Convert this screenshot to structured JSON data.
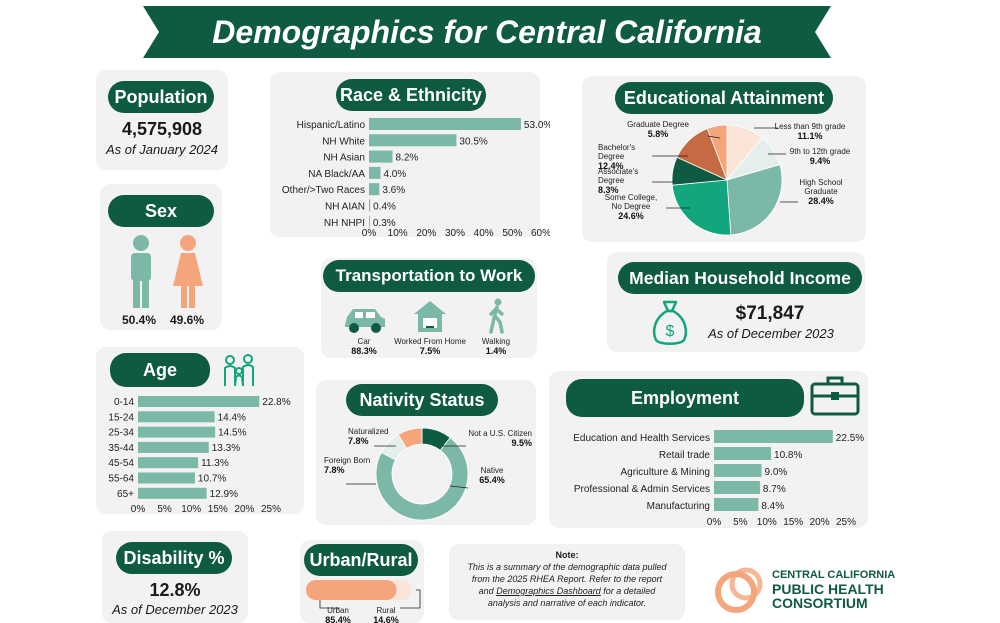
{
  "title": "Demographics for Central California",
  "colors": {
    "dark_green": "#0f5a43",
    "teal": "#7bb8a8",
    "light": "#dceee8",
    "orange": "#f4a57c",
    "card": "#f2f2f2"
  },
  "population": {
    "heading": "Population",
    "value": "4,575,908",
    "asof": "As of January 2024"
  },
  "sex": {
    "heading": "Sex",
    "male_pct": "50.4%",
    "female_pct": "49.6%",
    "male_icon": "male-person-icon",
    "female_icon": "female-person-icon"
  },
  "race": {
    "heading": "Race & Ethnicity"
  },
  "education": {
    "heading": "Educational Attainment",
    "labels": [
      {
        "name": "Graduate Degree",
        "pct": "5.8%"
      },
      {
        "name": "Bachelor's Degree",
        "pct": "12.4%"
      },
      {
        "name": "Associate's Degree",
        "pct": "8.3%"
      },
      {
        "name1": "Some College,",
        "name2": "No Degree",
        "pct": "24.6%"
      },
      {
        "name": "Less than 9th grade",
        "pct": "11.1%"
      },
      {
        "name": "9th to 12th grade",
        "pct": "9.4%"
      },
      {
        "name1": "High School",
        "name2": "Graduate",
        "pct": "28.4%"
      }
    ]
  },
  "transport": {
    "heading": "Transportation to Work",
    "items": [
      {
        "label": "Car",
        "pct": "88.3%",
        "icon": "car-icon"
      },
      {
        "label": "Worked From Home",
        "pct": "7.5%",
        "icon": "house-icon"
      },
      {
        "label": "Walking",
        "pct": "1.4%",
        "icon": "walking-icon"
      }
    ]
  },
  "income": {
    "heading": "Median Household Income",
    "value": "$71,847",
    "asof": "As of December 2023",
    "icon": "money-bag-icon"
  },
  "age": {
    "heading": "Age",
    "icon": "family-icon"
  },
  "nativity": {
    "heading": "Nativity Status",
    "labels": [
      {
        "name": "Naturalized",
        "pct": "7.8%"
      },
      {
        "name": "Foreign Born",
        "pct": "7.8%"
      },
      {
        "name": "Not a U.S. Citizen",
        "pct": "9.5%"
      },
      {
        "name": "Native",
        "pct": "65.4%"
      }
    ]
  },
  "employment": {
    "heading": "Employment",
    "icon": "briefcase-icon"
  },
  "disability": {
    "heading": "Disability %",
    "value": "12.8%",
    "asof": "As of December 2023"
  },
  "urban": {
    "heading": "Urban/Rural",
    "urban_label": "Urban",
    "urban_pct": "85.4%",
    "rural_label": "Rural",
    "rural_pct": "14.6%"
  },
  "note": {
    "title": "Note:",
    "line1": "This is a summary of the demographic data pulled",
    "line2": "from the 2025 RHEA Report. Refer to the report",
    "line3a": "and ",
    "line3link": "Demographics Dashboard",
    "line3b": " for a detailed",
    "line4": "analysis and narrative of each indicator."
  },
  "logo": {
    "line1": "CENTRAL CALIFORNIA",
    "line2": "PUBLIC HEALTH",
    "line3": "CONSORTIUM"
  },
  "chart_data": [
    {
      "id": "race",
      "type": "bar",
      "categories": [
        "Hispanic/Latino",
        "NH White",
        "NH Asian",
        "NA Black/AA",
        "Other/>Two Races",
        "NH AIAN",
        "NH NHPI"
      ],
      "values": [
        53.0,
        30.5,
        8.2,
        4.0,
        3.6,
        0.4,
        0.3
      ],
      "value_labels": [
        "53.0%",
        "30.5%",
        "8.2%",
        "4.0%",
        "3.6%",
        "0.4%",
        "0.3%"
      ],
      "xlim": [
        0,
        60
      ],
      "ticks": [
        "0%",
        "10%",
        "20%",
        "30%",
        "40%",
        "50%",
        "60%"
      ]
    },
    {
      "id": "education",
      "type": "pie",
      "categories": [
        "Less than 9th grade",
        "9th to 12th grade",
        "High School Graduate",
        "Some College, No Degree",
        "Associate's Degree",
        "Bachelor's Degree",
        "Graduate Degree"
      ],
      "values": [
        11.1,
        9.4,
        28.4,
        24.6,
        8.3,
        12.4,
        5.8
      ],
      "colors": [
        "#fbe5d8",
        "#e4eeec",
        "#7bb8a8",
        "#12a57e",
        "#0f5a43",
        "#c56a42",
        "#f4a57c"
      ]
    },
    {
      "id": "age",
      "type": "bar",
      "categories": [
        "0-14",
        "15-24",
        "25-34",
        "35-44",
        "45-54",
        "55-64",
        "65+"
      ],
      "values": [
        22.8,
        14.4,
        14.5,
        13.3,
        11.3,
        10.7,
        12.9
      ],
      "value_labels": [
        "22.8%",
        "14.4%",
        "14.5%",
        "13.3%",
        "11.3%",
        "10.7%",
        "12.9%"
      ],
      "xlim": [
        0,
        25
      ],
      "ticks": [
        "0%",
        "5%",
        "10%",
        "15%",
        "20%",
        "25%"
      ]
    },
    {
      "id": "nativity",
      "type": "pie",
      "categories": [
        "Not a U.S. Citizen",
        "Native",
        "Foreign Born",
        "Naturalized"
      ],
      "values": [
        9.5,
        65.4,
        7.8,
        7.8
      ],
      "colors": [
        "#0f5a43",
        "#7bb8a8",
        "#e4eeec",
        "#f4a57c"
      ],
      "donut": true
    },
    {
      "id": "employment",
      "type": "bar",
      "categories": [
        "Education and Health Services",
        "Retail trade",
        "Agriculture & Mining",
        "Professional & Admin Services",
        "Manufacturing"
      ],
      "values": [
        22.5,
        10.8,
        9.0,
        8.7,
        8.4
      ],
      "value_labels": [
        "22.5%",
        "10.8%",
        "9.0%",
        "8.7%",
        "8.4%"
      ],
      "xlim": [
        0,
        25
      ],
      "ticks": [
        "0%",
        "5%",
        "10%",
        "15%",
        "20%",
        "25%"
      ]
    },
    {
      "id": "urban",
      "type": "bar",
      "categories": [
        "Urban",
        "Rural"
      ],
      "values": [
        85.4,
        14.6
      ]
    }
  ]
}
